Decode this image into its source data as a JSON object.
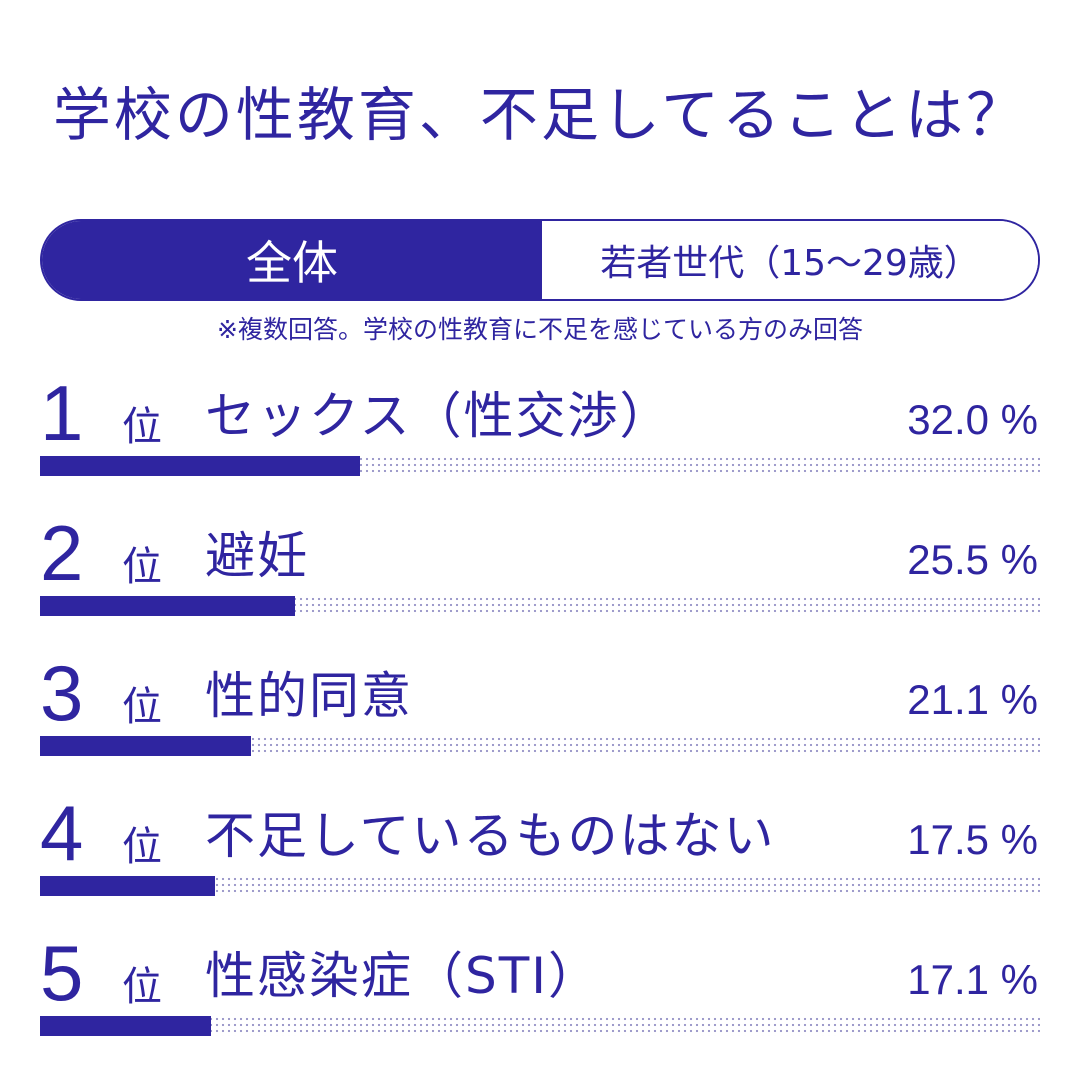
{
  "title": "学校の性教育、不足してることは？",
  "toggle": {
    "active_label": "全体",
    "inactive_label": "若者世代（15～29歳）"
  },
  "note": "※複数回答。学校の性教育に不足を感じている方のみ回答",
  "rank_suffix": "位",
  "percent_sign": "%",
  "colors": {
    "accent": "#2f25a0",
    "background": "#ffffff",
    "dots": "#9a96c8"
  },
  "chart_data": {
    "type": "bar",
    "orientation": "horizontal",
    "categories": [
      "セックス（性交渉）",
      "避妊",
      "性的同意",
      "不足しているものはない",
      "性感染症（STI）"
    ],
    "values": [
      32.0,
      25.5,
      21.1,
      17.5,
      17.1
    ],
    "ranks": [
      "1",
      "2",
      "3",
      "4",
      "5"
    ],
    "value_labels": [
      "32.0",
      "25.5",
      "21.1",
      "17.5",
      "17.1"
    ],
    "xlim": [
      0,
      100
    ],
    "unit": "%"
  }
}
